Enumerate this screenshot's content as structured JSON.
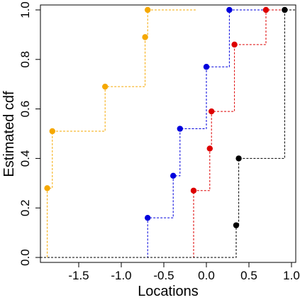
{
  "chart_data": {
    "type": "line",
    "subtype": "step-ecdf",
    "xlabel": "Locations",
    "ylabel": "Estimated cdf",
    "xlim": [
      -1.95,
      1.05
    ],
    "ylim": [
      -0.02,
      1.02
    ],
    "x_ticks": [
      -1.5,
      -1.0,
      -0.5,
      0.0,
      0.5,
      1.0
    ],
    "x_tick_labels": [
      "-1.5",
      "-1.0",
      "-0.5",
      "0.0",
      "0.5",
      "1.0"
    ],
    "y_ticks": [
      0.0,
      0.2,
      0.4,
      0.6,
      0.8,
      1.0
    ],
    "y_tick_labels": [
      "0.0",
      "0.2",
      "0.4",
      "0.6",
      "0.8",
      "1.0"
    ],
    "grid": false,
    "legend": "none",
    "series": [
      {
        "color": "#F5A800",
        "line_style": "dashed",
        "start_x": -1.95,
        "end_x": -0.12,
        "points": [
          {
            "x": -1.87,
            "y": 0.28
          },
          {
            "x": -1.81,
            "y": 0.51
          },
          {
            "x": -1.19,
            "y": 0.69
          },
          {
            "x": -0.72,
            "y": 0.89
          },
          {
            "x": -0.69,
            "y": 1.0
          }
        ]
      },
      {
        "color": "#0000DD",
        "line_style": "dashed",
        "start_x": -0.95,
        "end_x": 1.05,
        "points": [
          {
            "x": -0.69,
            "y": 0.16
          },
          {
            "x": -0.39,
            "y": 0.33
          },
          {
            "x": -0.31,
            "y": 0.52
          },
          {
            "x": 0.0,
            "y": 0.77
          },
          {
            "x": 0.27,
            "y": 1.0
          }
        ]
      },
      {
        "color": "#DD0000",
        "line_style": "dashed",
        "start_x": -0.95,
        "end_x": 1.05,
        "points": [
          {
            "x": -0.15,
            "y": 0.27
          },
          {
            "x": 0.04,
            "y": 0.44
          },
          {
            "x": 0.06,
            "y": 0.59
          },
          {
            "x": 0.33,
            "y": 0.86
          },
          {
            "x": 0.7,
            "y": 1.0
          }
        ]
      },
      {
        "color": "#000000",
        "line_style": "dashed",
        "start_x": -1.95,
        "end_x": 1.05,
        "points": [
          {
            "x": 0.35,
            "y": 0.13
          },
          {
            "x": 0.38,
            "y": 0.4
          },
          {
            "x": 0.92,
            "y": 1.0
          }
        ]
      }
    ]
  }
}
